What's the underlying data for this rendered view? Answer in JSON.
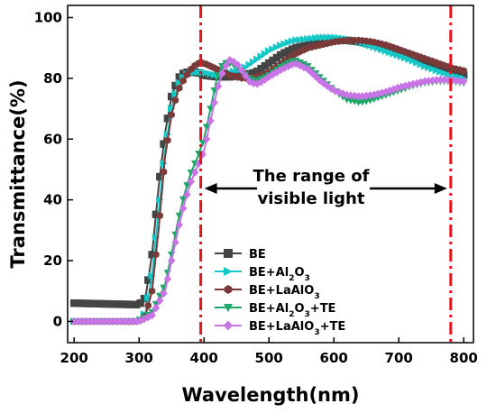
{
  "chart_data": {
    "type": "line",
    "title": "",
    "xlabel": "Wavelength(nm)",
    "ylabel": "Transmittance(%)",
    "xlim": [
      190,
      815
    ],
    "ylim": [
      -7,
      104
    ],
    "xticks": [
      200,
      300,
      400,
      500,
      600,
      700,
      800
    ],
    "yticks": [
      0,
      20,
      40,
      60,
      80,
      100
    ],
    "grid": false,
    "legend_position": "bottom-center",
    "annotation": {
      "line1": "The range of",
      "line2": "visible light",
      "range_start": 395,
      "range_end": 780,
      "range_color": "#e8141c"
    },
    "series": [
      {
        "name": "BE",
        "legend_html": "BE",
        "color": "#444444",
        "marker": "square",
        "points": [
          [
            200,
            6
          ],
          [
            300,
            5.5
          ],
          [
            310,
            8
          ],
          [
            320,
            22
          ],
          [
            330,
            44
          ],
          [
            340,
            62
          ],
          [
            350,
            74
          ],
          [
            360,
            80
          ],
          [
            370,
            82
          ],
          [
            380,
            82
          ],
          [
            390,
            82
          ],
          [
            400,
            81
          ],
          [
            420,
            80.5
          ],
          [
            440,
            80.5
          ],
          [
            460,
            81
          ],
          [
            480,
            82
          ],
          [
            500,
            85
          ],
          [
            520,
            88
          ],
          [
            540,
            90
          ],
          [
            560,
            91
          ],
          [
            580,
            92
          ],
          [
            600,
            92.5
          ],
          [
            620,
            92.5
          ],
          [
            640,
            92
          ],
          [
            660,
            91
          ],
          [
            680,
            89.5
          ],
          [
            700,
            88
          ],
          [
            720,
            86.5
          ],
          [
            740,
            85
          ],
          [
            760,
            83.5
          ],
          [
            780,
            82
          ],
          [
            800,
            81
          ]
        ]
      },
      {
        "name": "BE+Al2O3",
        "legend_html": "BE+Al<tspan baseline-shift=\"sub\" font-size=\"9\">2</tspan>O<tspan baseline-shift=\"sub\" font-size=\"9\">3</tspan>",
        "color": "#14c8c8",
        "marker": "triangle-right",
        "points": [
          [
            200,
            0
          ],
          [
            300,
            0
          ],
          [
            310,
            3
          ],
          [
            320,
            15
          ],
          [
            330,
            36
          ],
          [
            340,
            56
          ],
          [
            350,
            70
          ],
          [
            360,
            78
          ],
          [
            370,
            81
          ],
          [
            380,
            82
          ],
          [
            390,
            82
          ],
          [
            400,
            82
          ],
          [
            420,
            81
          ],
          [
            440,
            82
          ],
          [
            460,
            83
          ],
          [
            480,
            86
          ],
          [
            500,
            89
          ],
          [
            520,
            91
          ],
          [
            540,
            92.5
          ],
          [
            560,
            93
          ],
          [
            580,
            93.5
          ],
          [
            600,
            93.5
          ],
          [
            620,
            93
          ],
          [
            640,
            92
          ],
          [
            660,
            90.5
          ],
          [
            680,
            89
          ],
          [
            700,
            87.5
          ],
          [
            720,
            86
          ],
          [
            740,
            84
          ],
          [
            760,
            82.5
          ],
          [
            780,
            81
          ],
          [
            800,
            80
          ]
        ]
      },
      {
        "name": "BE+LaAlO3",
        "legend_html": "BE+LaAlO<tspan baseline-shift=\"sub\" font-size=\"9\">3</tspan>",
        "color": "#7b3a3a",
        "marker": "hexagon",
        "points": [
          [
            200,
            0
          ],
          [
            300,
            0
          ],
          [
            310,
            2
          ],
          [
            320,
            10
          ],
          [
            330,
            30
          ],
          [
            340,
            54
          ],
          [
            350,
            68
          ],
          [
            360,
            76
          ],
          [
            370,
            80
          ],
          [
            380,
            83
          ],
          [
            390,
            85
          ],
          [
            400,
            85
          ],
          [
            410,
            84
          ],
          [
            420,
            83
          ],
          [
            430,
            82
          ],
          [
            440,
            81
          ],
          [
            460,
            80
          ],
          [
            480,
            80.5
          ],
          [
            500,
            82
          ],
          [
            520,
            85
          ],
          [
            540,
            88
          ],
          [
            560,
            90
          ],
          [
            580,
            91
          ],
          [
            600,
            92
          ],
          [
            620,
            92.5
          ],
          [
            640,
            92.5
          ],
          [
            660,
            92
          ],
          [
            680,
            91
          ],
          [
            700,
            89.5
          ],
          [
            720,
            88
          ],
          [
            740,
            86.5
          ],
          [
            760,
            85
          ],
          [
            780,
            83.5
          ],
          [
            800,
            82.5
          ]
        ]
      },
      {
        "name": "BE+Al2O3+TE",
        "legend_html": "BE+Al<tspan baseline-shift=\"sub\" font-size=\"9\">2</tspan>O<tspan baseline-shift=\"sub\" font-size=\"9\">3</tspan>+TE",
        "color": "#1fa86a",
        "marker": "triangle-down",
        "points": [
          [
            200,
            0
          ],
          [
            300,
            0
          ],
          [
            320,
            3
          ],
          [
            340,
            12
          ],
          [
            350,
            22
          ],
          [
            360,
            33
          ],
          [
            370,
            42
          ],
          [
            380,
            49
          ],
          [
            390,
            54
          ],
          [
            400,
            60
          ],
          [
            410,
            70
          ],
          [
            420,
            80
          ],
          [
            430,
            85
          ],
          [
            440,
            85
          ],
          [
            450,
            84
          ],
          [
            460,
            82
          ],
          [
            470,
            80
          ],
          [
            480,
            79
          ],
          [
            500,
            81
          ],
          [
            520,
            84
          ],
          [
            540,
            86
          ],
          [
            560,
            84
          ],
          [
            580,
            80
          ],
          [
            600,
            76
          ],
          [
            620,
            73
          ],
          [
            640,
            72
          ],
          [
            660,
            73
          ],
          [
            680,
            74.5
          ],
          [
            700,
            76
          ],
          [
            720,
            77.5
          ],
          [
            740,
            78.5
          ],
          [
            760,
            79
          ],
          [
            780,
            79
          ],
          [
            800,
            78.5
          ]
        ]
      },
      {
        "name": "BE+LaAlO3+TE",
        "legend_html": "BE+LaAlO<tspan baseline-shift=\"sub\" font-size=\"9\">3</tspan>+TE",
        "color": "#c873e6",
        "marker": "diamond",
        "points": [
          [
            200,
            0
          ],
          [
            300,
            0
          ],
          [
            320,
            2
          ],
          [
            340,
            10
          ],
          [
            350,
            20
          ],
          [
            360,
            30
          ],
          [
            370,
            39
          ],
          [
            380,
            46
          ],
          [
            390,
            51
          ],
          [
            400,
            56
          ],
          [
            410,
            66
          ],
          [
            420,
            76
          ],
          [
            430,
            83
          ],
          [
            440,
            86
          ],
          [
            450,
            85
          ],
          [
            460,
            82
          ],
          [
            470,
            79
          ],
          [
            480,
            78
          ],
          [
            490,
            79
          ],
          [
            500,
            80.5
          ],
          [
            520,
            83
          ],
          [
            540,
            85
          ],
          [
            560,
            83
          ],
          [
            580,
            79
          ],
          [
            600,
            76
          ],
          [
            620,
            74.5
          ],
          [
            640,
            74
          ],
          [
            660,
            74.5
          ],
          [
            680,
            75.5
          ],
          [
            700,
            77
          ],
          [
            720,
            78
          ],
          [
            740,
            79
          ],
          [
            760,
            79.5
          ],
          [
            780,
            79.5
          ],
          [
            800,
            79
          ]
        ]
      }
    ]
  }
}
